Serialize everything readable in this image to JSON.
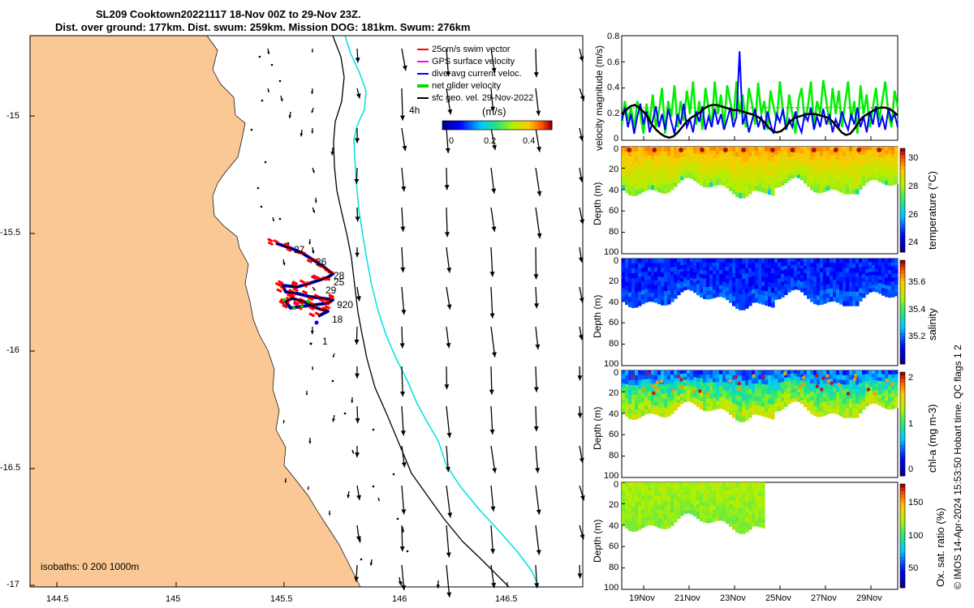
{
  "title": {
    "line1": "SL209 Cooktown20221117 18-Nov 00Z to 29-Nov 23Z.",
    "line2": "Dist. over ground: 177km. Dist. swum: 259km. Mission DOG: 181km. Swum: 276km"
  },
  "map": {
    "x_ticks": [
      "144.5",
      "145",
      "145.5",
      "146",
      "146.5"
    ],
    "y_ticks": [
      "-15",
      "-15.5",
      "-16",
      "-16.5",
      "-17"
    ],
    "isobaths_label": "isobaths: 0   200  1000m",
    "day_labels": [
      "27",
      "26",
      "28",
      "25",
      "29",
      "920",
      "18",
      "1"
    ],
    "legend": [
      {
        "label": "25cm/s swim vector",
        "color": "#ff0000"
      },
      {
        "label": "GPS surface velocity",
        "color": "#ff00ff"
      },
      {
        "label": "dive-avg current veloc.",
        "color": "#0000ff"
      },
      {
        "label": "net glider velocity",
        "color": "#00dd00"
      },
      {
        "label": "sfc geo. vel. 29-Nov-2022",
        "color": "#000000"
      }
    ],
    "colorbar": {
      "title": "(m/s)",
      "ticks": [
        "0",
        "0.2",
        "0.4"
      ],
      "extra": "4h"
    },
    "colors": {
      "land": "#f9c894",
      "contour200": "#000000",
      "contour1000": "#00e0e0"
    }
  },
  "chart_data": [
    {
      "type": "line",
      "ylabel": "velocity magnitude (m/s)",
      "ylim": [
        0,
        0.8
      ],
      "y_ticks": [
        "0",
        "0.2",
        "0.4",
        "0.6",
        "0.8"
      ],
      "series": [
        {
          "color": "#00ee00",
          "values": [
            0.12,
            0.3,
            0.15,
            0.25,
            0.08,
            0.3,
            0.2,
            0.05,
            0.28,
            0.12,
            0.35,
            0.1,
            0.22,
            0.4,
            0.05,
            0.3,
            0.18,
            0.42,
            0.1,
            0.3,
            0.15,
            0.38,
            0.2,
            0.45,
            0.12,
            0.3,
            0.08,
            0.4,
            0.25,
            0.1,
            0.45,
            0.2,
            0.35,
            0.1,
            0.42,
            0.3,
            0.15,
            0.45,
            0.2,
            0.35,
            0.1,
            0.4,
            0.28,
            0.12,
            0.44,
            0.2,
            0.3,
            0.08,
            0.38,
            0.25,
            0.15,
            0.45,
            0.22,
            0.1,
            0.35,
            0.2,
            0.05,
            0.3,
            0.4,
            0.15,
            0.25,
            0.45,
            0.1,
            0.3,
            0.2,
            0.46,
            0.3,
            0.12,
            0.4,
            0.2,
            0.38,
            0.1,
            0.28,
            0.45,
            0.15,
            0.3,
            0.05,
            0.42,
            0.2,
            0.35,
            0.1,
            0.25,
            0.4,
            0.15,
            0.3,
            0.45,
            0.2,
            0.1,
            0.38,
            0.25
          ]
        },
        {
          "color": "#0000ff",
          "values": [
            0.15,
            0.25,
            0.1,
            0.2,
            0.05,
            0.18,
            0.28,
            0.12,
            0.22,
            0.06,
            0.15,
            0.26,
            0.1,
            0.2,
            0.08,
            0.24,
            0.14,
            0.05,
            0.2,
            0.12,
            0.28,
            0.1,
            0.16,
            0.06,
            0.22,
            0.14,
            0.26,
            0.08,
            0.18,
            0.1,
            0.24,
            0.12,
            0.2,
            0.08,
            0.16,
            0.25,
            0.1,
            0.18,
            0.68,
            0.12,
            0.2,
            0.06,
            0.15,
            0.24,
            0.1,
            0.18,
            0.08,
            0.22,
            0.12,
            0.05,
            0.2,
            0.14,
            0.24,
            0.08,
            0.16,
            0.1,
            0.22,
            0.12,
            0.06,
            0.2,
            0.15,
            0.25,
            0.08,
            0.18,
            0.1,
            0.24,
            0.12,
            0.2,
            0.06,
            0.16,
            0.1,
            0.22,
            0.14,
            0.08,
            0.2,
            0.12,
            0.25,
            0.1,
            0.18,
            0.06,
            0.22,
            0.12,
            0.26,
            0.1,
            0.18,
            0.08,
            0.24,
            0.15,
            0.2,
            0.1
          ]
        },
        {
          "color": "#000000",
          "values": [
            0.2,
            0.23,
            0.26,
            0.27,
            0.25,
            0.22,
            0.18,
            0.12,
            0.08,
            0.05,
            0.03,
            0.02,
            0.03,
            0.06,
            0.1,
            0.14,
            0.17,
            0.19,
            0.21,
            0.24,
            0.26,
            0.27,
            0.27,
            0.26,
            0.25,
            0.24,
            0.23,
            0.23,
            0.22,
            0.21,
            0.2,
            0.19,
            0.17,
            0.14,
            0.1,
            0.07,
            0.06,
            0.07,
            0.1,
            0.14,
            0.17,
            0.18,
            0.19,
            0.2,
            0.2,
            0.2,
            0.19,
            0.18,
            0.17,
            0.14,
            0.1,
            0.06,
            0.04,
            0.05,
            0.09,
            0.14,
            0.18,
            0.2,
            0.22,
            0.24,
            0.25,
            0.25,
            0.24,
            0.22,
            0.19
          ]
        },
        {
          "color": "#ff7070",
          "values": [
            0.25,
            0.25
          ]
        }
      ]
    },
    {
      "type": "heatmap",
      "ylabel": "Depth (m)",
      "ylim": [
        0,
        100
      ],
      "y_ticks": [
        "0",
        "20",
        "40",
        "60",
        "80",
        "100"
      ],
      "cbar_label": "temperature (°C)",
      "cbar_ticks": [
        "30",
        "28",
        "26",
        "24"
      ]
    },
    {
      "type": "heatmap",
      "ylabel": "Depth (m)",
      "ylim": [
        0,
        100
      ],
      "y_ticks": [
        "0",
        "20",
        "40",
        "60",
        "80",
        "100"
      ],
      "cbar_label": "salinity",
      "cbar_ticks": [
        "35.6",
        "35.4",
        "35.2"
      ]
    },
    {
      "type": "heatmap",
      "ylabel": "Depth (m)",
      "ylim": [
        0,
        100
      ],
      "y_ticks": [
        "0",
        "20",
        "40",
        "60",
        "80",
        "100"
      ],
      "cbar_label": "chl-a (mg m-3)",
      "cbar_ticks": [
        "2",
        "1",
        "0"
      ]
    },
    {
      "type": "heatmap",
      "ylabel": "Depth (m)",
      "ylim": [
        0,
        100
      ],
      "y_ticks": [
        "0",
        "20",
        "40",
        "60",
        "80",
        "100"
      ],
      "cbar_label": "Ox. sat. ratio (%)",
      "cbar_ticks": [
        "150",
        "100",
        "50"
      ],
      "x_ticks": [
        "19Nov",
        "21Nov",
        "23Nov",
        "25Nov",
        "27Nov",
        "29Nov"
      ]
    }
  ],
  "footer": "© IMOS 14-Apr-2024 15:53:50 Hobart time. QC flags 1  2"
}
